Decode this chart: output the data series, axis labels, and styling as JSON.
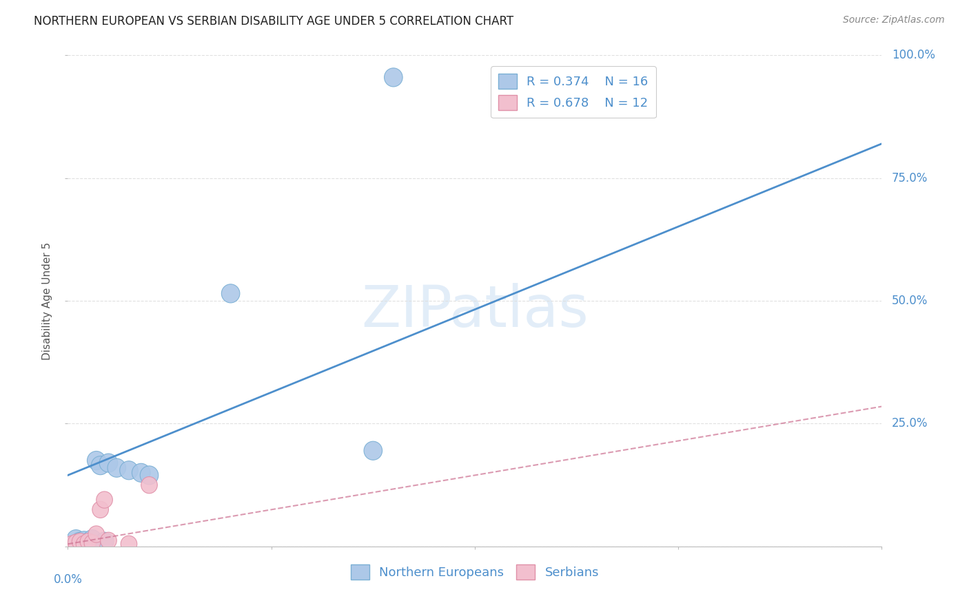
{
  "title": "NORTHERN EUROPEAN VS SERBIAN DISABILITY AGE UNDER 5 CORRELATION CHART",
  "source": "Source: ZipAtlas.com",
  "ylabel": "Disability Age Under 5",
  "watermark": "ZIPatlas",
  "xlim": [
    0.0,
    0.2
  ],
  "ylim": [
    0.0,
    1.0
  ],
  "blue_R": 0.374,
  "blue_N": 16,
  "pink_R": 0.678,
  "pink_N": 12,
  "blue_color": "#adc8e8",
  "blue_edge": "#7aafd4",
  "blue_line_color": "#4d8fcc",
  "pink_color": "#f2bfce",
  "pink_edge": "#e090a8",
  "pink_line_color": "#cc7090",
  "background_color": "#ffffff",
  "grid_color": "#e0e0e0",
  "blue_scatter_x": [
    0.002,
    0.003,
    0.004,
    0.005,
    0.006,
    0.007,
    0.008,
    0.009,
    0.01,
    0.012,
    0.015,
    0.018,
    0.02,
    0.04,
    0.075,
    0.08
  ],
  "blue_scatter_y": [
    0.015,
    0.01,
    0.012,
    0.008,
    0.015,
    0.175,
    0.165,
    0.01,
    0.17,
    0.16,
    0.155,
    0.15,
    0.145,
    0.515,
    0.195,
    0.955
  ],
  "pink_scatter_x": [
    0.001,
    0.002,
    0.003,
    0.004,
    0.005,
    0.006,
    0.007,
    0.008,
    0.009,
    0.01,
    0.015,
    0.02
  ],
  "pink_scatter_y": [
    0.005,
    0.008,
    0.01,
    0.005,
    0.01,
    0.007,
    0.025,
    0.075,
    0.095,
    0.012,
    0.005,
    0.125
  ],
  "blue_line_x0": 0.0,
  "blue_line_y0": 0.145,
  "blue_line_x1": 0.2,
  "blue_line_y1": 0.82,
  "pink_line_x0": 0.0,
  "pink_line_y0": 0.005,
  "pink_line_x1": 0.2,
  "pink_line_y1": 0.285,
  "title_fontsize": 12,
  "source_fontsize": 10,
  "axis_label_fontsize": 11,
  "tick_fontsize": 12,
  "legend_fontsize": 13,
  "watermark_fontsize": 60,
  "watermark_color": "#c0d8f0",
  "watermark_alpha": 0.45
}
